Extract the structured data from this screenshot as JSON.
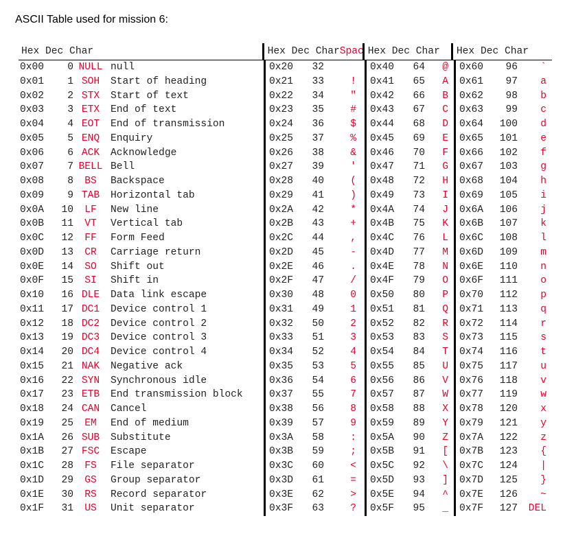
{
  "caption": "ASCII Table used for mission 6:",
  "headers": {
    "col0": "Hex Dec Char",
    "col1_a": "Hex  Dec Char",
    "col1_space": "Space",
    "col2": "Hex  Dec Char",
    "col3": "Hex  Dec  Char"
  },
  "colors": {
    "accent": "#e8002d",
    "text": "#222222"
  },
  "rows": [
    {
      "h0": "0x00",
      "d0": "0",
      "a0": "NULL",
      "n0": "null",
      "h1": "0x20",
      "d1": "32",
      "c1": "",
      "h2": "0x40",
      "d2": "64",
      "c2": "@",
      "h3": "0x60",
      "d3": "96",
      "c3": "`"
    },
    {
      "h0": "0x01",
      "d0": "1",
      "a0": "SOH",
      "n0": "Start of heading",
      "h1": "0x21",
      "d1": "33",
      "c1": "!",
      "h2": "0x41",
      "d2": "65",
      "c2": "A",
      "h3": "0x61",
      "d3": "97",
      "c3": "a"
    },
    {
      "h0": "0x02",
      "d0": "2",
      "a0": "STX",
      "n0": "Start of text",
      "h1": "0x22",
      "d1": "34",
      "c1": "\"",
      "h2": "0x42",
      "d2": "66",
      "c2": "B",
      "h3": "0x62",
      "d3": "98",
      "c3": "b"
    },
    {
      "h0": "0x03",
      "d0": "3",
      "a0": "ETX",
      "n0": "End of text",
      "h1": "0x23",
      "d1": "35",
      "c1": "#",
      "h2": "0x43",
      "d2": "67",
      "c2": "C",
      "h3": "0x63",
      "d3": "99",
      "c3": "c"
    },
    {
      "h0": "0x04",
      "d0": "4",
      "a0": "EOT",
      "n0": "End of transmission",
      "h1": "0x24",
      "d1": "36",
      "c1": "$",
      "h2": "0x44",
      "d2": "68",
      "c2": "D",
      "h3": "0x64",
      "d3": "100",
      "c3": "d"
    },
    {
      "h0": "0x05",
      "d0": "5",
      "a0": "ENQ",
      "n0": "Enquiry",
      "h1": "0x25",
      "d1": "37",
      "c1": "%",
      "h2": "0x45",
      "d2": "69",
      "c2": "E",
      "h3": "0x65",
      "d3": "101",
      "c3": "e"
    },
    {
      "h0": "0x06",
      "d0": "6",
      "a0": "ACK",
      "n0": "Acknowledge",
      "h1": "0x26",
      "d1": "38",
      "c1": "&",
      "h2": "0x46",
      "d2": "70",
      "c2": "F",
      "h3": "0x66",
      "d3": "102",
      "c3": "f"
    },
    {
      "h0": "0x07",
      "d0": "7",
      "a0": "BELL",
      "n0": "Bell",
      "h1": "0x27",
      "d1": "39",
      "c1": "'",
      "h2": "0x47",
      "d2": "71",
      "c2": "G",
      "h3": "0x67",
      "d3": "103",
      "c3": "g"
    },
    {
      "h0": "0x08",
      "d0": "8",
      "a0": "BS",
      "n0": "Backspace",
      "h1": "0x28",
      "d1": "40",
      "c1": "(",
      "h2": "0x48",
      "d2": "72",
      "c2": "H",
      "h3": "0x68",
      "d3": "104",
      "c3": "h"
    },
    {
      "h0": "0x09",
      "d0": "9",
      "a0": "TAB",
      "n0": "Horizontal tab",
      "h1": "0x29",
      "d1": "41",
      "c1": ")",
      "h2": "0x49",
      "d2": "73",
      "c2": "I",
      "h3": "0x69",
      "d3": "105",
      "c3": "i"
    },
    {
      "h0": "0x0A",
      "d0": "10",
      "a0": "LF",
      "n0": "New line",
      "h1": "0x2A",
      "d1": "42",
      "c1": "*",
      "h2": "0x4A",
      "d2": "74",
      "c2": "J",
      "h3": "0x6A",
      "d3": "106",
      "c3": "j"
    },
    {
      "h0": "0x0B",
      "d0": "11",
      "a0": "VT",
      "n0": "Vertical tab",
      "h1": "0x2B",
      "d1": "43",
      "c1": "+",
      "h2": "0x4B",
      "d2": "75",
      "c2": "K",
      "h3": "0x6B",
      "d3": "107",
      "c3": "k"
    },
    {
      "h0": "0x0C",
      "d0": "12",
      "a0": "FF",
      "n0": "Form Feed",
      "h1": "0x2C",
      "d1": "44",
      "c1": ",",
      "h2": "0x4C",
      "d2": "76",
      "c2": "L",
      "h3": "0x6C",
      "d3": "108",
      "c3": "l"
    },
    {
      "h0": "0x0D",
      "d0": "13",
      "a0": "CR",
      "n0": "Carriage return",
      "h1": "0x2D",
      "d1": "45",
      "c1": "-",
      "h2": "0x4D",
      "d2": "77",
      "c2": "M",
      "h3": "0x6D",
      "d3": "109",
      "c3": "m"
    },
    {
      "h0": "0x0E",
      "d0": "14",
      "a0": "SO",
      "n0": "Shift out",
      "h1": "0x2E",
      "d1": "46",
      "c1": ".",
      "h2": "0x4E",
      "d2": "78",
      "c2": "N",
      "h3": "0x6E",
      "d3": "110",
      "c3": "n"
    },
    {
      "h0": "0x0F",
      "d0": "15",
      "a0": "SI",
      "n0": "Shift in",
      "h1": "0x2F",
      "d1": "47",
      "c1": "/",
      "h2": "0x4F",
      "d2": "79",
      "c2": "O",
      "h3": "0x6F",
      "d3": "111",
      "c3": "o"
    },
    {
      "h0": "0x10",
      "d0": "16",
      "a0": "DLE",
      "n0": "Data link escape",
      "h1": "0x30",
      "d1": "48",
      "c1": "0",
      "h2": "0x50",
      "d2": "80",
      "c2": "P",
      "h3": "0x70",
      "d3": "112",
      "c3": "p"
    },
    {
      "h0": "0x11",
      "d0": "17",
      "a0": "DC1",
      "n0": "Device control 1",
      "h1": "0x31",
      "d1": "49",
      "c1": "1",
      "h2": "0x51",
      "d2": "81",
      "c2": "Q",
      "h3": "0x71",
      "d3": "113",
      "c3": "q"
    },
    {
      "h0": "0x12",
      "d0": "18",
      "a0": "DC2",
      "n0": "Device control 2",
      "h1": "0x32",
      "d1": "50",
      "c1": "2",
      "h2": "0x52",
      "d2": "82",
      "c2": "R",
      "h3": "0x72",
      "d3": "114",
      "c3": "r"
    },
    {
      "h0": "0x13",
      "d0": "19",
      "a0": "DC3",
      "n0": "Device control 3",
      "h1": "0x33",
      "d1": "51",
      "c1": "3",
      "h2": "0x53",
      "d2": "83",
      "c2": "S",
      "h3": "0x73",
      "d3": "115",
      "c3": "s"
    },
    {
      "h0": "0x14",
      "d0": "20",
      "a0": "DC4",
      "n0": "Device control 4",
      "h1": "0x34",
      "d1": "52",
      "c1": "4",
      "h2": "0x54",
      "d2": "84",
      "c2": "T",
      "h3": "0x74",
      "d3": "116",
      "c3": "t"
    },
    {
      "h0": "0x15",
      "d0": "21",
      "a0": "NAK",
      "n0": "Negative ack",
      "h1": "0x35",
      "d1": "53",
      "c1": "5",
      "h2": "0x55",
      "d2": "85",
      "c2": "U",
      "h3": "0x75",
      "d3": "117",
      "c3": "u"
    },
    {
      "h0": "0x16",
      "d0": "22",
      "a0": "SYN",
      "n0": "Synchronous idle",
      "h1": "0x36",
      "d1": "54",
      "c1": "6",
      "h2": "0x56",
      "d2": "86",
      "c2": "V",
      "h3": "0x76",
      "d3": "118",
      "c3": "v"
    },
    {
      "h0": "0x17",
      "d0": "23",
      "a0": "ETB",
      "n0": "End transmission block",
      "h1": "0x37",
      "d1": "55",
      "c1": "7",
      "h2": "0x57",
      "d2": "87",
      "c2": "W",
      "h3": "0x77",
      "d3": "119",
      "c3": "w"
    },
    {
      "h0": "0x18",
      "d0": "24",
      "a0": "CAN",
      "n0": "Cancel",
      "h1": "0x38",
      "d1": "56",
      "c1": "8",
      "h2": "0x58",
      "d2": "88",
      "c2": "X",
      "h3": "0x78",
      "d3": "120",
      "c3": "x"
    },
    {
      "h0": "0x19",
      "d0": "25",
      "a0": "EM",
      "n0": "End of medium",
      "h1": "0x39",
      "d1": "57",
      "c1": "9",
      "h2": "0x59",
      "d2": "89",
      "c2": "Y",
      "h3": "0x79",
      "d3": "121",
      "c3": "y"
    },
    {
      "h0": "0x1A",
      "d0": "26",
      "a0": "SUB",
      "n0": "Substitute",
      "h1": "0x3A",
      "d1": "58",
      "c1": ":",
      "h2": "0x5A",
      "d2": "90",
      "c2": "Z",
      "h3": "0x7A",
      "d3": "122",
      "c3": "z"
    },
    {
      "h0": "0x1B",
      "d0": "27",
      "a0": "FSC",
      "n0": "Escape",
      "h1": "0x3B",
      "d1": "59",
      "c1": ";",
      "h2": "0x5B",
      "d2": "91",
      "c2": "[",
      "h3": "0x7B",
      "d3": "123",
      "c3": "{"
    },
    {
      "h0": "0x1C",
      "d0": "28",
      "a0": "FS",
      "n0": "File separator",
      "h1": "0x3C",
      "d1": "60",
      "c1": "<",
      "h2": "0x5C",
      "d2": "92",
      "c2": "\\",
      "h3": "0x7C",
      "d3": "124",
      "c3": "|"
    },
    {
      "h0": "0x1D",
      "d0": "29",
      "a0": "GS",
      "n0": "Group separator",
      "h1": "0x3D",
      "d1": "61",
      "c1": "=",
      "h2": "0x5D",
      "d2": "93",
      "c2": "]",
      "h3": "0x7D",
      "d3": "125",
      "c3": "}"
    },
    {
      "h0": "0x1E",
      "d0": "30",
      "a0": "RS",
      "n0": "Record separator",
      "h1": "0x3E",
      "d1": "62",
      "c1": ">",
      "h2": "0x5E",
      "d2": "94",
      "c2": "^",
      "h3": "0x7E",
      "d3": "126",
      "c3": "~"
    },
    {
      "h0": "0x1F",
      "d0": "31",
      "a0": "US",
      "n0": "Unit separator",
      "h1": "0x3F",
      "d1": "63",
      "c1": "?",
      "h2": "0x5F",
      "d2": "95",
      "c2": "_",
      "h3": "0x7F",
      "d3": "127",
      "c3": "DEL"
    }
  ]
}
